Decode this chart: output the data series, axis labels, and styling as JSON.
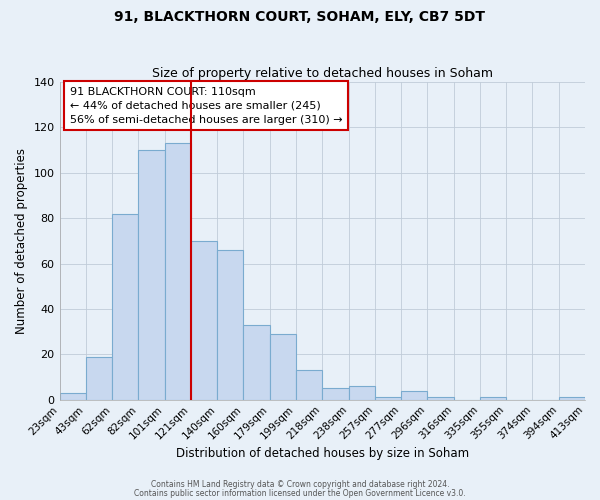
{
  "title": "91, BLACKTHORN COURT, SOHAM, ELY, CB7 5DT",
  "subtitle": "Size of property relative to detached houses in Soham",
  "xlabel": "Distribution of detached houses by size in Soham",
  "ylabel": "Number of detached properties",
  "bar_values": [
    3,
    19,
    82,
    110,
    113,
    70,
    66,
    33,
    29,
    13,
    5,
    6,
    1,
    4,
    1,
    0,
    1,
    0,
    0,
    1
  ],
  "bar_labels": [
    "23sqm",
    "43sqm",
    "62sqm",
    "82sqm",
    "101sqm",
    "121sqm",
    "140sqm",
    "160sqm",
    "179sqm",
    "199sqm",
    "218sqm",
    "238sqm",
    "257sqm",
    "277sqm",
    "296sqm",
    "316sqm",
    "335sqm",
    "355sqm",
    "374sqm",
    "394sqm",
    "413sqm"
  ],
  "bar_color": "#c8d8ef",
  "bar_edge_color": "#7aabcf",
  "vline_color": "#cc0000",
  "ylim": [
    0,
    140
  ],
  "yticks": [
    0,
    20,
    40,
    60,
    80,
    100,
    120,
    140
  ],
  "annotation_text": "91 BLACKTHORN COURT: 110sqm\n← 44% of detached houses are smaller (245)\n56% of semi-detached houses are larger (310) →",
  "annotation_box_color": "white",
  "annotation_box_edgecolor": "#cc0000",
  "footer1": "Contains HM Land Registry data © Crown copyright and database right 2024.",
  "footer2": "Contains public sector information licensed under the Open Government Licence v3.0.",
  "background_color": "#e8f0f8",
  "plot_bg_color": "#e8f0f8",
  "grid_color": "#c0ccd8",
  "title_fontsize": 10,
  "subtitle_fontsize": 9
}
